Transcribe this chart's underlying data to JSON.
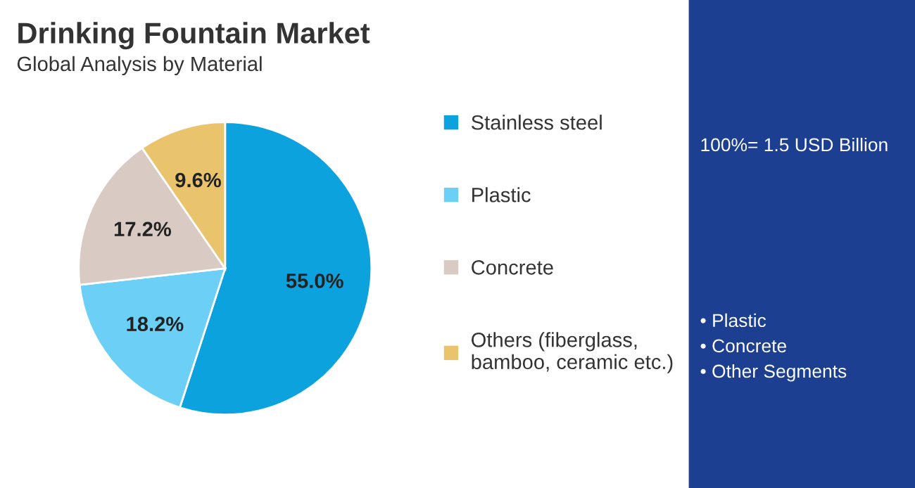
{
  "chart_data": {
    "type": "pie",
    "title": "Drinking Fountain Market",
    "subtitle": "Global Analysis by Material",
    "categories": [
      "Stainless steel",
      "Plastic",
      "Concrete",
      "Others (fiberglass,\nbamboo, ceramic etc.)"
    ],
    "values": [
      55.0,
      18.2,
      17.2,
      9.6
    ],
    "value_labels": [
      "55.0%",
      "18.2%",
      "17.2%",
      "9.6%"
    ],
    "colors": [
      "#0ba2dd",
      "#6ccff5",
      "#d9cac4",
      "#e9c46c"
    ],
    "legend": "right",
    "annotations": [
      "100%= 1.5 USD Billion",
      "• Plastic",
      "• Concrete",
      "• Other Segments"
    ]
  }
}
